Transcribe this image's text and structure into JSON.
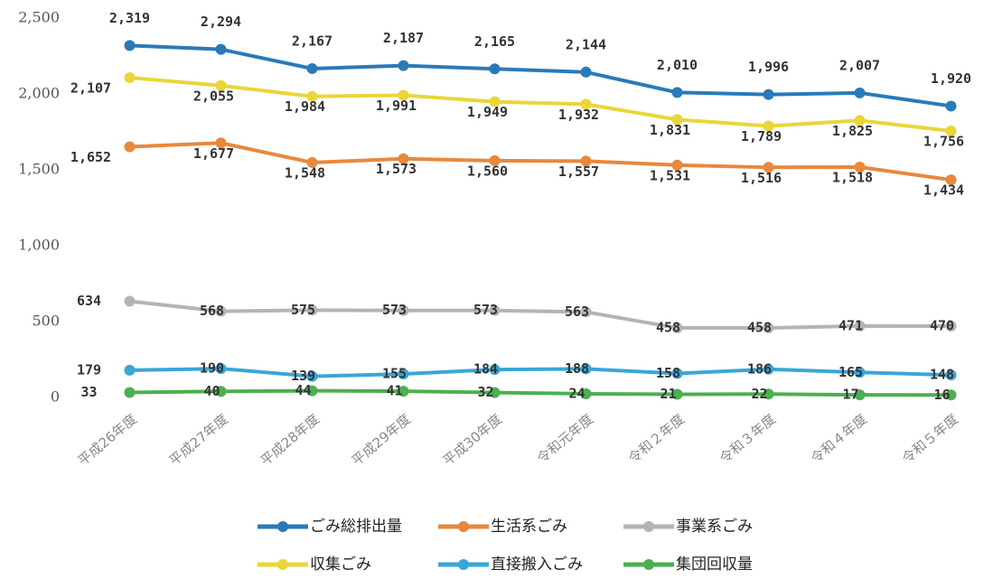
{
  "chart_data": {
    "type": "line",
    "categories": [
      "平成26年度",
      "平成27年度",
      "平成28年度",
      "平成29年度",
      "平成30年度",
      "令和元年度",
      "令和２年度",
      "令和３年度",
      "令和４年度",
      "令和５年度"
    ],
    "series": [
      {
        "name": "ごみ総排出量",
        "color": "#2a7ab8",
        "values": [
          2319,
          2294,
          2167,
          2187,
          2165,
          2144,
          2010,
          1996,
          2007,
          1920
        ],
        "value_labels": [
          "2,319",
          "2,294",
          "2,167",
          "2,187",
          "2,165",
          "2,144",
          "2,010",
          "1,996",
          "2,007",
          "1,920"
        ]
      },
      {
        "name": "生活系ごみ",
        "color": "#e8883c",
        "values": [
          1652,
          1677,
          1548,
          1573,
          1560,
          1557,
          1531,
          1516,
          1518,
          1434
        ],
        "value_labels": [
          "1,652",
          "1,677",
          "1,548",
          "1,573",
          "1,560",
          "1,557",
          "1,531",
          "1,516",
          "1,518",
          "1,434"
        ]
      },
      {
        "name": "事業系ごみ",
        "color": "#b4b4b4",
        "values": [
          634,
          568,
          575,
          573,
          573,
          563,
          458,
          458,
          471,
          470
        ]
      },
      {
        "name": "収集ごみ",
        "color": "#ead53a",
        "values": [
          2107,
          2055,
          1984,
          1991,
          1949,
          1932,
          1831,
          1789,
          1825,
          1756
        ],
        "value_labels": [
          "2,107",
          "2,055",
          "1,984",
          "1,991",
          "1,949",
          "1,932",
          "1,831",
          "1,789",
          "1,825",
          "1,756"
        ]
      },
      {
        "name": "直接搬入ごみ",
        "color": "#3aa6d6",
        "values": [
          179,
          190,
          139,
          155,
          184,
          188,
          158,
          186,
          165,
          148
        ]
      },
      {
        "name": "集団回収量",
        "color": "#4caf50",
        "values": [
          33,
          40,
          44,
          41,
          32,
          24,
          21,
          22,
          17,
          16
        ]
      }
    ],
    "ylim": [
      0,
      2500
    ],
    "yticks": [
      0,
      500,
      {
        "value": 1000,
        "label": "1,000"
      },
      {
        "value": 1500,
        "label": "1,500"
      },
      {
        "value": 2000,
        "label": "2,000"
      },
      {
        "value": 2500,
        "label": "2,500"
      }
    ],
    "legend": "bottom"
  }
}
